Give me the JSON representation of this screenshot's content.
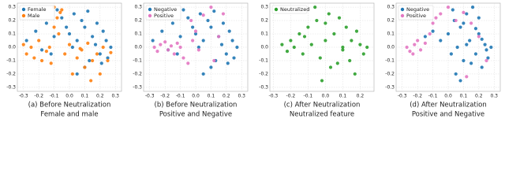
{
  "chart_data": [
    {
      "type": "scatter",
      "caption": [
        "(a) Before Neutralization",
        "Female and male"
      ],
      "xlim": [
        -0.34,
        0.34
      ],
      "ylim": [
        -0.33,
        0.33
      ],
      "xticks": [
        -0.3,
        -0.2,
        -0.1,
        {
          "value": 0,
          "label": "0.0"
        },
        0.1,
        0.2,
        0.3
      ],
      "yticks": [
        -0.3,
        -0.2,
        -0.1,
        {
          "value": 0,
          "label": "0.0"
        },
        0.1,
        0.2,
        0.3
      ],
      "grid": true,
      "legend": "upper left",
      "series": [
        {
          "name": "Female",
          "color": "#1f77b4",
          "x": [
            -0.28,
            -0.22,
            -0.15,
            -0.12,
            -0.08,
            -0.05,
            -0.02,
            0.0,
            0.03,
            0.05,
            0.08,
            0.1,
            0.12,
            0.15,
            0.17,
            0.2,
            0.22,
            0.25,
            0.27,
            0.1,
            0.05,
            -0.1,
            0.18,
            0.24,
            0.02,
            -0.18,
            0.13,
            0.21
          ],
          "values": [
            0.05,
            0.12,
            0.18,
            -0.05,
            0.28,
            0.22,
            0.15,
            0.1,
            0.25,
            0.05,
            0.2,
            0.15,
            0.27,
            0.08,
            0.02,
            -0.05,
            0.12,
            -0.08,
            0.0,
            -0.15,
            -0.2,
            0.08,
            0.18,
            0.05,
            0.0,
            -0.02,
            -0.1,
            -0.12
          ]
        },
        {
          "name": "Male",
          "color": "#ff7f0e",
          "x": [
            -0.3,
            -0.28,
            -0.25,
            -0.23,
            -0.2,
            -0.18,
            -0.15,
            -0.13,
            -0.1,
            -0.08,
            -0.06,
            -0.1,
            -0.07,
            -0.05,
            -0.12,
            -0.03,
            0.0,
            0.02,
            0.05,
            0.08,
            0.1,
            0.12,
            0.15,
            0.18,
            0.2,
            0.22,
            0.25,
            0.27,
            0.14,
            0.07
          ],
          "values": [
            0.02,
            -0.05,
            0.0,
            -0.08,
            0.05,
            -0.1,
            -0.03,
            0.0,
            0.3,
            0.22,
            0.26,
            0.15,
            0.1,
            0.28,
            -0.12,
            -0.05,
            0.02,
            -0.2,
            -0.08,
            -0.02,
            -0.15,
            0.03,
            -0.1,
            -0.05,
            -0.2,
            0.0,
            -0.1,
            -0.04,
            -0.25,
            -0.01
          ]
        }
      ]
    },
    {
      "type": "scatter",
      "caption": [
        "(b) Before Neutralization",
        "Positive and Negative"
      ],
      "xlim": [
        -0.34,
        0.34
      ],
      "ylim": [
        -0.33,
        0.33
      ],
      "xticks": [
        -0.3,
        -0.2,
        -0.1,
        {
          "value": 0,
          "label": "0.0"
        },
        0.1,
        0.2,
        0.3
      ],
      "yticks": [
        -0.3,
        -0.2,
        -0.1,
        {
          "value": 0,
          "label": "0.0"
        },
        0.1,
        0.2,
        0.3
      ],
      "grid": true,
      "legend": "upper left",
      "series": [
        {
          "name": "Negative",
          "color": "#1f77b4",
          "x": [
            -0.28,
            -0.22,
            -0.15,
            -0.12,
            -0.08,
            -0.05,
            -0.02,
            0.0,
            0.03,
            0.05,
            0.08,
            0.1,
            0.12,
            0.15,
            0.17,
            0.2,
            0.22,
            0.25,
            0.27,
            0.1,
            0.05,
            -0.1,
            0.18,
            0.24,
            0.02,
            -0.18,
            0.13,
            0.21
          ],
          "values": [
            0.05,
            0.12,
            0.18,
            -0.05,
            0.28,
            0.22,
            0.15,
            0.1,
            0.25,
            0.05,
            0.2,
            0.15,
            0.27,
            0.08,
            0.02,
            -0.05,
            0.12,
            -0.08,
            0.0,
            -0.15,
            -0.2,
            0.08,
            0.18,
            0.05,
            0.0,
            -0.02,
            -0.1,
            -0.12
          ]
        },
        {
          "name": "Positive",
          "color": "#e377c2",
          "x": [
            -0.27,
            -0.25,
            -0.23,
            -0.2,
            -0.18,
            -0.16,
            -0.14,
            -0.12,
            -0.1,
            -0.08,
            -0.05,
            -0.02,
            0.02,
            0.05,
            0.1,
            0.15,
            -0.03,
            0.0,
            0.12,
            0.18
          ],
          "values": [
            0.0,
            -0.03,
            0.02,
            0.04,
            -0.02,
            0.01,
            -0.05,
            0.03,
            0.0,
            -0.08,
            -0.12,
            0.05,
            -0.02,
            0.24,
            0.3,
            0.08,
            0.2,
            0.12,
            -0.1,
            0.25
          ]
        }
      ]
    },
    {
      "type": "scatter",
      "caption": [
        "(c) After Neutralization",
        "Neutralized feature"
      ],
      "xlim": [
        -0.32,
        0.28
      ],
      "ylim": [
        -0.33,
        0.33
      ],
      "xticks": [
        -0.3,
        -0.2,
        -0.1,
        {
          "value": 0,
          "label": "0.0"
        },
        0.1,
        0.2
      ],
      "yticks": [
        -0.3,
        -0.2,
        -0.1,
        {
          "value": 0,
          "label": "0.0"
        },
        0.1,
        0.2,
        0.3
      ],
      "grid": true,
      "legend": "upper left",
      "series": [
        {
          "name": "Neutralized",
          "color": "#2ca02c",
          "x": [
            -0.25,
            -0.22,
            -0.2,
            -0.18,
            -0.15,
            -0.13,
            -0.1,
            -0.08,
            -0.05,
            -0.03,
            0.0,
            0.02,
            0.05,
            0.07,
            0.1,
            0.12,
            0.15,
            0.17,
            0.2,
            0.22,
            0.24,
            -0.12,
            -0.06,
            0.03,
            0.08,
            0.14,
            0.18,
            -0.02,
            0.0,
            0.1
          ],
          "values": [
            0.02,
            -0.03,
            0.05,
            0.0,
            0.1,
            -0.05,
            0.15,
            0.02,
            0.2,
            -0.08,
            0.05,
            0.25,
            0.1,
            -0.12,
            0.0,
            0.15,
            0.05,
            -0.2,
            0.02,
            -0.05,
            0.0,
            0.08,
            0.3,
            -0.15,
            0.22,
            -0.1,
            0.12,
            -0.25,
            0.18,
            -0.02
          ]
        }
      ]
    },
    {
      "type": "scatter",
      "caption": [
        "(d) After Neutralization",
        "Positive and Negative"
      ],
      "xlim": [
        -0.34,
        0.34
      ],
      "ylim": [
        -0.33,
        0.33
      ],
      "xticks": [
        -0.3,
        -0.2,
        -0.1,
        {
          "value": 0,
          "label": "0.0"
        },
        0.1,
        0.2,
        0.3
      ],
      "yticks": [
        -0.3,
        -0.2,
        -0.1,
        {
          "value": 0,
          "label": "0.0"
        },
        0.1,
        0.2,
        0.3
      ],
      "grid": true,
      "legend": "upper left",
      "series": [
        {
          "name": "Negative",
          "color": "#1f77b4",
          "x": [
            -0.05,
            0.0,
            0.02,
            0.04,
            0.06,
            0.08,
            0.1,
            0.12,
            0.14,
            0.16,
            0.18,
            0.2,
            0.22,
            0.24,
            0.26,
            0.28,
            0.05,
            0.1,
            0.15,
            0.2,
            -0.1,
            -0.15,
            0.12,
            0.08,
            0.18,
            0.03,
            0.22,
            0.25
          ],
          "values": [
            0.05,
            0.1,
            -0.05,
            0.2,
            0.0,
            0.15,
            -0.1,
            0.25,
            0.05,
            0.3,
            -0.05,
            0.1,
            -0.15,
            0.02,
            -0.08,
            0.0,
            -0.2,
            0.18,
            -0.12,
            0.22,
            0.12,
            0.08,
            0.02,
            -0.25,
            0.14,
            0.28,
            0.06,
            -0.02
          ]
        },
        {
          "name": "Positive",
          "color": "#e377c2",
          "x": [
            -0.27,
            -0.25,
            -0.22,
            -0.2,
            -0.18,
            -0.15,
            -0.12,
            -0.1,
            -0.08,
            -0.05,
            0.0,
            0.05,
            0.1,
            0.15,
            0.2,
            0.25,
            -0.23,
            0.12
          ],
          "values": [
            0.0,
            -0.03,
            0.02,
            0.05,
            -0.02,
            0.03,
            0.1,
            0.18,
            0.22,
            0.25,
            0.3,
            0.2,
            0.26,
            0.18,
            0.08,
            -0.1,
            -0.05,
            -0.22
          ]
        }
      ]
    }
  ]
}
